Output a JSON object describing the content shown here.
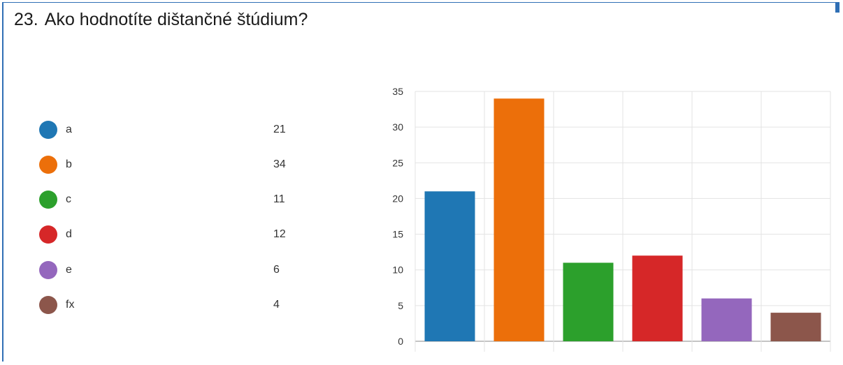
{
  "question": {
    "number": "23.",
    "text": "Ako hodnotíte dištančné štúdium?"
  },
  "colors": [
    "#1f77b4",
    "#ec6f0a",
    "#2ca02c",
    "#d62728",
    "#9467bd",
    "#8c564b"
  ],
  "legend": [
    {
      "label": "a",
      "count": "21",
      "color": "#1f77b4"
    },
    {
      "label": "b",
      "count": "34",
      "color": "#ec6f0a"
    },
    {
      "label": "c",
      "count": "11",
      "color": "#2ca02c"
    },
    {
      "label": "d",
      "count": "12",
      "color": "#d62728"
    },
    {
      "label": "e",
      "count": "6",
      "color": "#9467bd"
    },
    {
      "label": "fx",
      "count": "4",
      "color": "#8c564b"
    }
  ],
  "chart_data": {
    "type": "bar",
    "title": "",
    "xlabel": "",
    "ylabel": "",
    "categories": [
      "a",
      "b",
      "c",
      "d",
      "e",
      "fx"
    ],
    "values": [
      21,
      34,
      11,
      12,
      6,
      4
    ],
    "ylim": [
      0,
      35
    ],
    "yticks": [
      "0",
      "5",
      "10",
      "15",
      "20",
      "25",
      "30",
      "35"
    ],
    "grid": true,
    "legend_placement": "left"
  }
}
